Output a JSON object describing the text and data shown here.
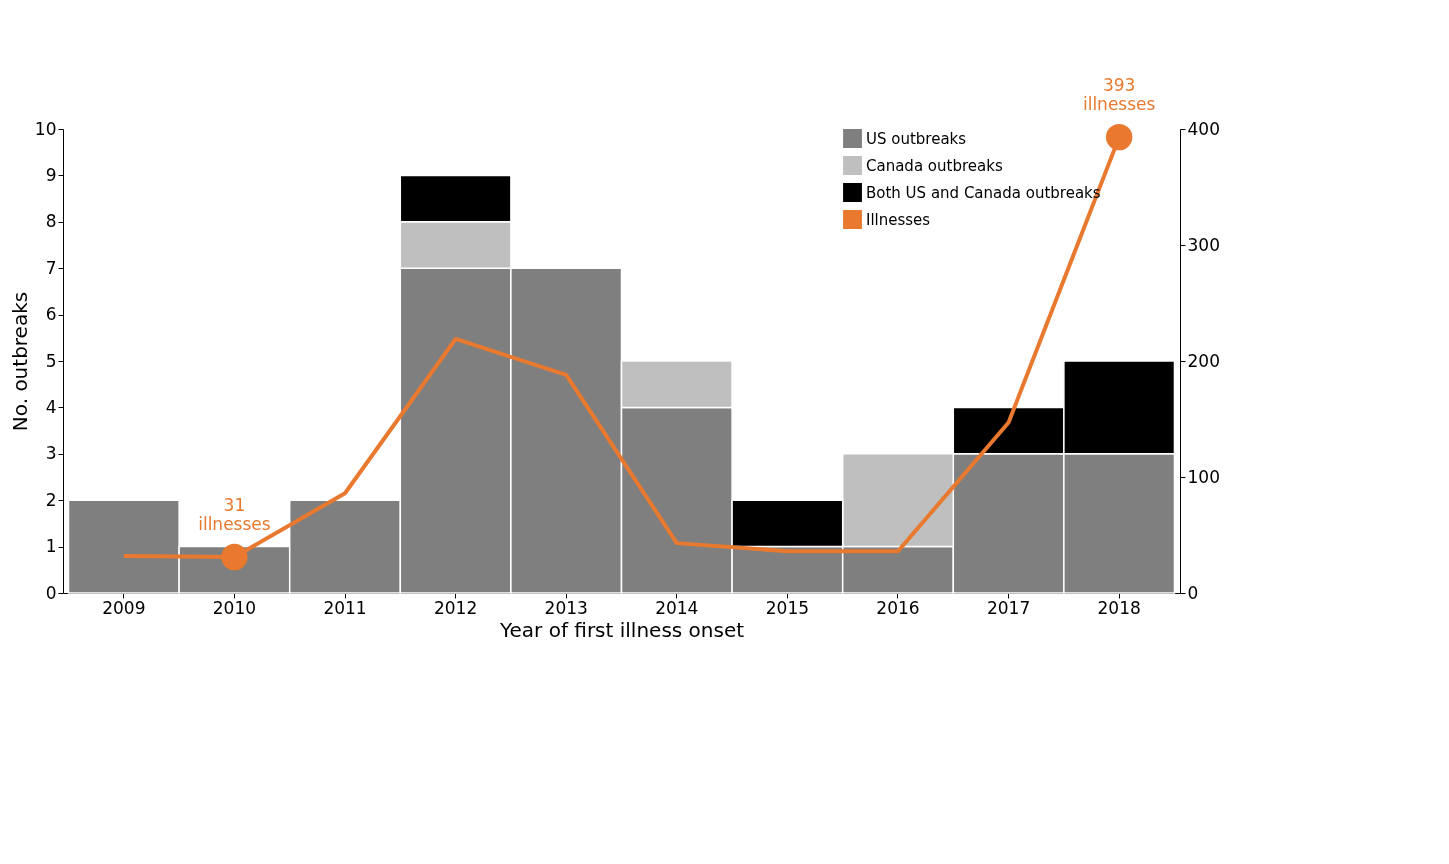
{
  "chart_data": {
    "type": "bar",
    "stacked": true,
    "xlabel": "Year of first illness onset",
    "ylabel": "No. outbreaks",
    "categories": [
      "2009",
      "2010",
      "2011",
      "2012",
      "2013",
      "2014",
      "2015",
      "2016",
      "2017",
      "2018"
    ],
    "series": [
      {
        "name": "US outbreaks",
        "color": "#7f7f7f",
        "values": [
          2,
          1,
          2,
          7,
          7,
          4,
          1,
          1,
          3,
          3
        ]
      },
      {
        "name": "Canada outbreaks",
        "color": "#bfbfbf",
        "values": [
          0,
          0,
          0,
          1,
          0,
          1,
          0,
          2,
          0,
          0
        ]
      },
      {
        "name": "Both US and Canada outbreaks",
        "color": "#000000",
        "values": [
          0,
          0,
          0,
          1,
          0,
          0,
          1,
          0,
          1,
          2
        ]
      },
      {
        "name": "Illnesses",
        "type": "line",
        "axis": "y2",
        "color": "#e8792f",
        "marker": "none",
        "values": [
          32,
          31,
          86,
          219,
          188,
          43,
          36,
          36,
          147,
          393
        ]
      },
      {
        "type": "scatter",
        "axis": "y2",
        "color": "#e8792f",
        "marker": "circle",
        "values": [
          null,
          31,
          null,
          null,
          null,
          null,
          null,
          null,
          null,
          393
        ]
      }
    ],
    "ylim": [
      0,
      10
    ],
    "yticks": [
      0,
      1,
      2,
      3,
      4,
      5,
      6,
      7,
      8,
      9,
      10
    ],
    "y2lim": [
      0,
      400
    ],
    "y2ticks": [
      0,
      100,
      200,
      300,
      400
    ],
    "annotations": [
      "31 illnesses",
      "393 illnesses"
    ],
    "legend": "top right",
    "grid": false
  }
}
